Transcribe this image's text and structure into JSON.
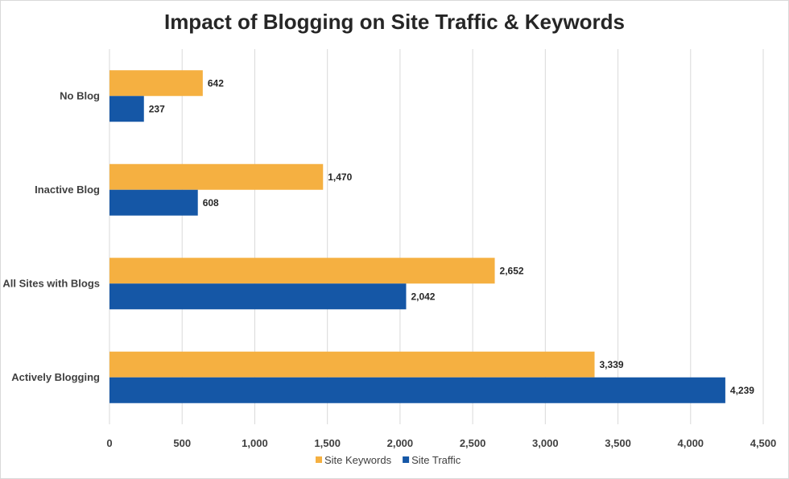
{
  "chart_data": {
    "type": "bar",
    "orientation": "horizontal",
    "title": "Impact of Blogging on Site Traffic & Keywords",
    "categories": [
      "No Blog",
      "Inactive Blog",
      "All Sites with Blogs",
      "Actively Blogging"
    ],
    "series": [
      {
        "name": "Site Keywords",
        "color": "#f5b041",
        "values": [
          642,
          1470,
          2652,
          3339
        ],
        "labels": [
          "642",
          "1,470",
          "2,652",
          "3,339"
        ]
      },
      {
        "name": "Site Traffic",
        "color": "#1557a6",
        "values": [
          237,
          608,
          2042,
          4239
        ],
        "labels": [
          "237",
          "608",
          "2,042",
          "4,239"
        ]
      }
    ],
    "xlim": [
      0,
      4500
    ],
    "ticks": [
      0,
      500,
      1000,
      1500,
      2000,
      2500,
      3000,
      3500,
      4000,
      4500
    ],
    "tick_labels": [
      "0",
      "500",
      "1,000",
      "1,500",
      "2,000",
      "2,500",
      "3,000",
      "3,500",
      "4,000",
      "4,500"
    ],
    "grid": true,
    "legend_position": "bottom"
  }
}
